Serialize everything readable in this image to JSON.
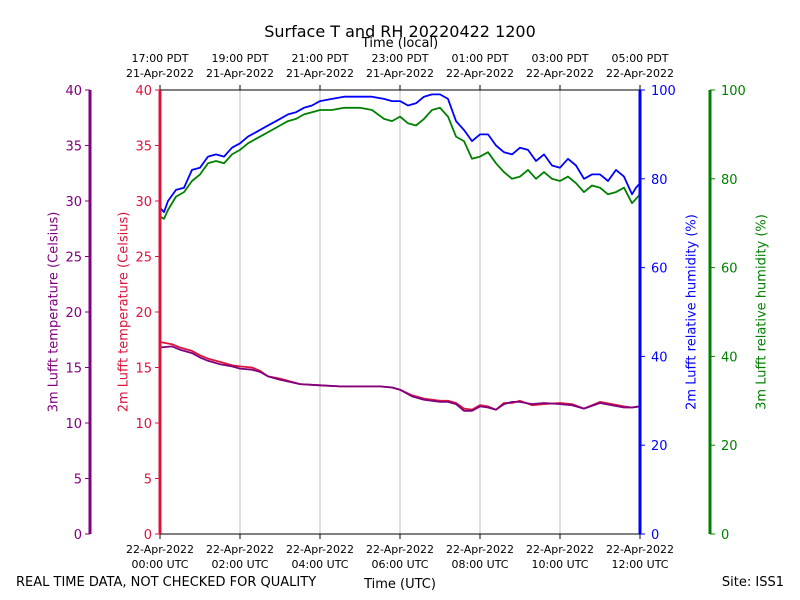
{
  "chart_data": {
    "type": "line",
    "title": "Surface T and RH 20220422 1200",
    "top_axis_label": "Time (local)",
    "xlabel": "Time (UTC)",
    "x_range": [
      "2022-04-22 00:00 UTC",
      "2022-04-22 12:00 UTC"
    ],
    "bottom_ticks": [
      {
        "h": 0,
        "line1": "22-Apr-2022",
        "line2": "00:00 UTC"
      },
      {
        "h": 2,
        "line1": "22-Apr-2022",
        "line2": "02:00 UTC"
      },
      {
        "h": 4,
        "line1": "22-Apr-2022",
        "line2": "04:00 UTC"
      },
      {
        "h": 6,
        "line1": "22-Apr-2022",
        "line2": "06:00 UTC"
      },
      {
        "h": 8,
        "line1": "22-Apr-2022",
        "line2": "08:00 UTC"
      },
      {
        "h": 10,
        "line1": "22-Apr-2022",
        "line2": "10:00 UTC"
      },
      {
        "h": 12,
        "line1": "22-Apr-2022",
        "line2": "12:00 UTC"
      }
    ],
    "top_ticks": [
      {
        "h": 0,
        "line1": "17:00 PDT",
        "line2": "21-Apr-2022"
      },
      {
        "h": 2,
        "line1": "19:00 PDT",
        "line2": "21-Apr-2022"
      },
      {
        "h": 4,
        "line1": "21:00 PDT",
        "line2": "21-Apr-2022"
      },
      {
        "h": 6,
        "line1": "23:00 PDT",
        "line2": "21-Apr-2022"
      },
      {
        "h": 8,
        "line1": "01:00 PDT",
        "line2": "22-Apr-2022"
      },
      {
        "h": 10,
        "line1": "03:00 PDT",
        "line2": "22-Apr-2022"
      },
      {
        "h": 12,
        "line1": "05:00 PDT",
        "line2": "22-Apr-2022"
      }
    ],
    "y_axes": [
      {
        "id": "t3",
        "label": "3m Lufft temperature (Celsius)",
        "color": "#800080",
        "range": [
          0,
          40
        ],
        "ticks": [
          0,
          5,
          10,
          15,
          20,
          25,
          30,
          35,
          40
        ]
      },
      {
        "id": "t2",
        "label": "2m Lufft temperature (Celsius)",
        "color": "#dc143c",
        "range": [
          0,
          40
        ],
        "ticks": [
          0,
          5,
          10,
          15,
          20,
          25,
          30,
          35,
          40
        ]
      },
      {
        "id": "rh2",
        "label": "2m Lufft relative humidity (%)",
        "color": "#0000ff",
        "range": [
          0,
          100
        ],
        "ticks": [
          0,
          20,
          40,
          60,
          80,
          100
        ]
      },
      {
        "id": "rh3",
        "label": "3m Lufft relative humidity (%)",
        "color": "#008000",
        "range": [
          0,
          100
        ],
        "ticks": [
          0,
          20,
          40,
          60,
          80,
          100
        ]
      }
    ],
    "grid": "vertical",
    "series": [
      {
        "axis": "rh2",
        "color": "#0000ff",
        "x": [
          0,
          0.1,
          0.2,
          0.4,
          0.6,
          0.8,
          1.0,
          1.2,
          1.4,
          1.6,
          1.8,
          2.0,
          2.2,
          2.4,
          2.6,
          2.8,
          3.0,
          3.2,
          3.4,
          3.6,
          3.8,
          4.0,
          4.3,
          4.6,
          5.0,
          5.3,
          5.6,
          5.8,
          6.0,
          6.2,
          6.4,
          6.6,
          6.8,
          7.0,
          7.2,
          7.4,
          7.6,
          7.8,
          8.0,
          8.2,
          8.4,
          8.6,
          8.8,
          9.0,
          9.2,
          9.4,
          9.6,
          9.8,
          10.0,
          10.2,
          10.4,
          10.6,
          10.8,
          11.0,
          11.2,
          11.4,
          11.6,
          11.8,
          11.9,
          12.0
        ],
        "y": [
          73.5,
          72.5,
          75.0,
          77.5,
          78.0,
          82.0,
          82.5,
          85.0,
          85.5,
          85.0,
          87.0,
          88.0,
          89.5,
          90.5,
          91.5,
          92.5,
          93.5,
          94.5,
          95.0,
          96.0,
          96.5,
          97.5,
          98.0,
          98.5,
          98.5,
          98.5,
          98.0,
          97.5,
          97.5,
          96.5,
          97.0,
          98.5,
          99.0,
          99.0,
          98.0,
          93.0,
          91.0,
          88.5,
          90.0,
          90.0,
          87.5,
          86.0,
          85.5,
          87.0,
          86.5,
          84.0,
          85.5,
          83.0,
          82.5,
          84.5,
          83.0,
          80.0,
          81.0,
          81.0,
          79.5,
          82.0,
          80.5,
          76.5,
          78.0,
          79.0
        ]
      },
      {
        "axis": "rh3",
        "color": "#008000",
        "x": [
          0,
          0.1,
          0.2,
          0.4,
          0.6,
          0.8,
          1.0,
          1.2,
          1.4,
          1.6,
          1.8,
          2.0,
          2.2,
          2.4,
          2.6,
          2.8,
          3.0,
          3.2,
          3.4,
          3.6,
          3.8,
          4.0,
          4.3,
          4.6,
          5.0,
          5.3,
          5.6,
          5.8,
          6.0,
          6.2,
          6.4,
          6.6,
          6.8,
          7.0,
          7.2,
          7.4,
          7.6,
          7.8,
          8.0,
          8.2,
          8.4,
          8.6,
          8.8,
          9.0,
          9.2,
          9.4,
          9.6,
          9.8,
          10.0,
          10.2,
          10.4,
          10.6,
          10.8,
          11.0,
          11.2,
          11.4,
          11.6,
          11.8,
          11.9,
          12.0
        ],
        "y": [
          71.5,
          71.0,
          73.0,
          76.0,
          77.0,
          79.5,
          81.0,
          83.5,
          84.0,
          83.5,
          85.5,
          86.5,
          88.0,
          89.0,
          90.0,
          91.0,
          92.0,
          93.0,
          93.5,
          94.5,
          95.0,
          95.5,
          95.5,
          96.0,
          96.0,
          95.5,
          93.5,
          93.0,
          94.0,
          92.5,
          92.0,
          93.5,
          95.5,
          96.0,
          94.0,
          89.5,
          88.5,
          84.5,
          85.0,
          86.0,
          83.5,
          81.5,
          80.0,
          80.5,
          82.0,
          80.0,
          81.5,
          80.0,
          79.5,
          80.5,
          79.0,
          77.0,
          78.5,
          78.0,
          76.5,
          77.0,
          78.0,
          74.5,
          75.5,
          76.5
        ]
      },
      {
        "axis": "t2",
        "color": "#dc143c",
        "x": [
          0,
          0.3,
          0.5,
          0.8,
          1.0,
          1.2,
          1.5,
          1.8,
          2.0,
          2.3,
          2.5,
          2.7,
          3.0,
          3.5,
          4.0,
          4.5,
          5.0,
          5.5,
          5.8,
          6.0,
          6.3,
          6.6,
          7.0,
          7.2,
          7.4,
          7.6,
          7.8,
          8.0,
          8.2,
          8.4,
          8.6,
          8.8,
          9.0,
          9.3,
          9.6,
          10.0,
          10.3,
          10.6,
          11.0,
          11.3,
          11.6,
          11.8,
          12.0
        ],
        "y": [
          17.3,
          17.1,
          16.8,
          16.5,
          16.1,
          15.8,
          15.5,
          15.2,
          15.1,
          15.0,
          14.7,
          14.2,
          14.0,
          13.5,
          13.4,
          13.3,
          13.3,
          13.3,
          13.2,
          13.0,
          12.5,
          12.2,
          12.0,
          12.0,
          11.8,
          11.3,
          11.2,
          11.6,
          11.5,
          11.2,
          11.8,
          11.8,
          12.0,
          11.6,
          11.7,
          11.8,
          11.7,
          11.3,
          11.9,
          11.7,
          11.5,
          11.4,
          11.5
        ]
      },
      {
        "axis": "t3",
        "color": "#800080",
        "x": [
          0,
          0.3,
          0.5,
          0.8,
          1.0,
          1.2,
          1.5,
          1.8,
          2.0,
          2.3,
          2.5,
          2.7,
          3.0,
          3.5,
          4.0,
          4.5,
          5.0,
          5.5,
          5.8,
          6.0,
          6.3,
          6.6,
          7.0,
          7.2,
          7.4,
          7.6,
          7.8,
          8.0,
          8.2,
          8.4,
          8.6,
          8.8,
          9.0,
          9.3,
          9.6,
          10.0,
          10.3,
          10.6,
          11.0,
          11.3,
          11.6,
          11.8,
          12.0
        ],
        "y": [
          16.8,
          16.9,
          16.6,
          16.3,
          15.9,
          15.6,
          15.3,
          15.1,
          14.9,
          14.8,
          14.6,
          14.2,
          13.9,
          13.5,
          13.4,
          13.3,
          13.3,
          13.3,
          13.2,
          13.0,
          12.4,
          12.1,
          11.9,
          11.9,
          11.7,
          11.1,
          11.1,
          11.5,
          11.4,
          11.2,
          11.7,
          11.9,
          11.9,
          11.7,
          11.8,
          11.7,
          11.6,
          11.3,
          11.8,
          11.6,
          11.4,
          11.4,
          11.5
        ]
      }
    ]
  },
  "footer": {
    "left_note": "REAL TIME DATA, NOT CHECKED FOR QUALITY",
    "site": "Site: ISS1"
  }
}
